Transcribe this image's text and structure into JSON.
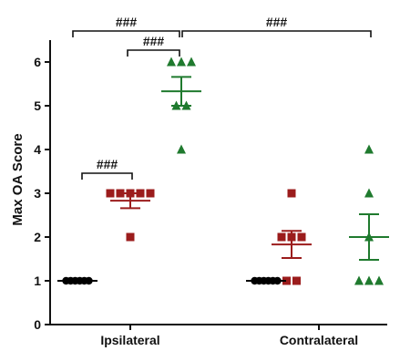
{
  "chart_data": {
    "type": "scatter",
    "ylabel": "Max OA Score",
    "xlabel": "",
    "ylim": [
      0,
      6.5
    ],
    "yticks": [
      0,
      1,
      2,
      3,
      4,
      5,
      6
    ],
    "categories": [
      "Ipsilateral",
      "Contralateral"
    ],
    "series": [
      {
        "category": "Ipsilateral",
        "marker": "circle",
        "color": "#000000",
        "values": [
          1,
          1,
          1,
          1,
          1,
          1
        ],
        "mean": 1.0,
        "sem": 0.0
      },
      {
        "category": "Ipsilateral",
        "marker": "square",
        "color": "#9b1c1c",
        "values": [
          3,
          3,
          3,
          3,
          3,
          2
        ],
        "mean": 2.83,
        "sem": 0.17
      },
      {
        "category": "Ipsilateral",
        "marker": "triangle",
        "color": "#1f7a2e",
        "values": [
          6,
          6,
          6,
          5,
          5,
          4
        ],
        "mean": 5.33,
        "sem": 0.33
      },
      {
        "category": "Contralateral",
        "marker": "circle",
        "color": "#000000",
        "values": [
          1,
          1,
          1,
          1,
          1,
          1
        ],
        "mean": 1.0,
        "sem": 0.0
      },
      {
        "category": "Contralateral",
        "marker": "square",
        "color": "#9b1c1c",
        "values": [
          3,
          2,
          2,
          2,
          1,
          1
        ],
        "mean": 1.83,
        "sem": 0.31
      },
      {
        "category": "Contralateral",
        "marker": "triangle",
        "color": "#1f7a2e",
        "values": [
          4,
          3,
          2,
          1,
          1,
          1
        ],
        "mean": 2.0,
        "sem": 0.52
      }
    ],
    "annotations": [
      {
        "label": "###",
        "from_group": 0,
        "to_group": 2
      },
      {
        "label": "###",
        "from_group": 1,
        "to_group": 2
      },
      {
        "label": "###",
        "from_group": 0,
        "to_group": 1
      },
      {
        "label": "###",
        "from_group": 2,
        "to_group": 5
      }
    ],
    "grid": false
  }
}
